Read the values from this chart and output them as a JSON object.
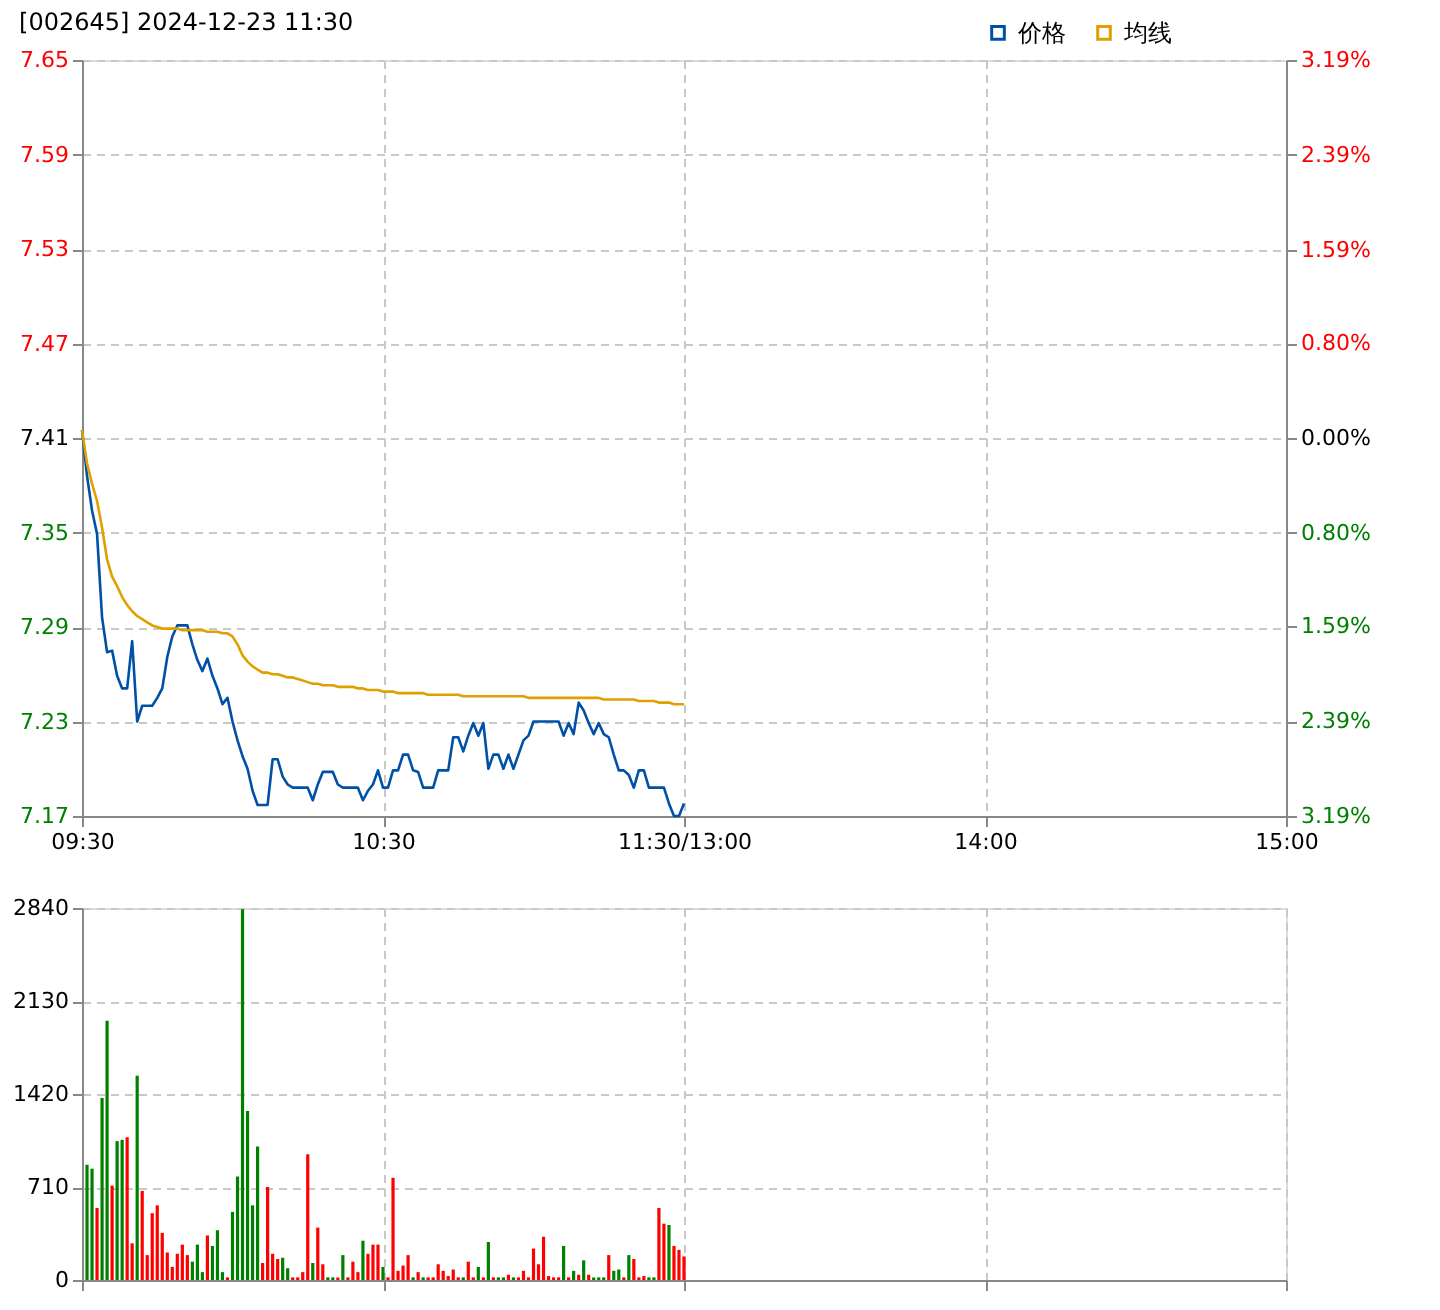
{
  "chart_data": [
    {
      "type": "line",
      "title": "[002645] 2024-12-23 11:30",
      "legend": "top right",
      "grid": true,
      "categories": [
        "09:30",
        null,
        null,
        null,
        null,
        null,
        null,
        null,
        null,
        null,
        null,
        null,
        null,
        null,
        null,
        null,
        null,
        null,
        null,
        null,
        null,
        null,
        null,
        null,
        null,
        null,
        null,
        null,
        null,
        null,
        null,
        null,
        null,
        null,
        null,
        null,
        null,
        null,
        null,
        null,
        null,
        null,
        null,
        null,
        null,
        null,
        null,
        null,
        null,
        null,
        null,
        null,
        null,
        null,
        null,
        null,
        null,
        null,
        null,
        null,
        "10:30",
        null,
        null,
        null,
        null,
        null,
        null,
        null,
        null,
        null,
        null,
        null,
        null,
        null,
        null,
        null,
        null,
        null,
        null,
        null,
        null,
        null,
        null,
        null,
        null,
        null,
        null,
        null,
        null,
        null,
        null,
        null,
        null,
        null,
        null,
        null,
        null,
        null,
        null,
        null,
        null,
        null,
        null,
        null,
        null,
        null,
        null,
        null,
        null,
        null,
        null,
        null,
        null,
        null,
        null,
        null,
        null,
        null,
        null,
        null,
        "11:30/13:00",
        null,
        null,
        null,
        null,
        null,
        null,
        null,
        null,
        null,
        null,
        null,
        null,
        null,
        null,
        null,
        null,
        null,
        null,
        null,
        null,
        null,
        null,
        null,
        null,
        null,
        null,
        null,
        null,
        null,
        null,
        null,
        null,
        null,
        null,
        null,
        null,
        null,
        null,
        null,
        null,
        null,
        null,
        null,
        null,
        null,
        null,
        null,
        null,
        null,
        null,
        null,
        null,
        null,
        null,
        null,
        null,
        null,
        null,
        null,
        "14:00",
        null,
        null,
        null,
        null,
        null,
        null,
        null,
        null,
        null,
        null,
        null,
        null,
        null,
        null,
        null,
        null,
        null,
        null,
        null,
        null,
        null,
        null,
        null,
        null,
        null,
        null,
        null,
        null,
        null,
        null,
        null,
        null,
        null,
        null,
        null,
        null,
        null,
        null,
        null,
        null,
        null,
        null,
        null,
        null,
        null,
        null,
        null,
        null,
        null,
        null,
        null,
        null,
        null,
        null,
        null,
        null,
        null,
        null,
        null,
        "15:00"
      ],
      "ylim": [
        7.17,
        7.65
      ],
      "yticks": [
        7.17,
        7.23,
        7.29,
        7.35,
        7.41,
        7.47,
        7.53,
        7.59,
        7.65
      ],
      "y2lim": [
        -3.19,
        3.19
      ],
      "y2ticks": [
        {
          "value": -3.19,
          "label": "3.19%"
        },
        {
          "value": -2.39,
          "label": "2.39%"
        },
        {
          "value": -1.59,
          "label": "1.59%"
        },
        {
          "value": -0.8,
          "label": "0.80%"
        },
        {
          "value": 0,
          "label": "0.00%"
        },
        {
          "value": 0.8,
          "label": "0.80%"
        },
        {
          "value": 1.59,
          "label": "1.59%"
        },
        {
          "value": 2.39,
          "label": "2.39%"
        },
        {
          "value": 3.19,
          "label": "3.19%"
        }
      ],
      "series": [
        {
          "name": "价格",
          "color": "#0050a8",
          "values": [
            7.415,
            7.386,
            7.364,
            7.349,
            7.296,
            7.274,
            7.275,
            7.259,
            7.251,
            7.251,
            7.281,
            7.23,
            7.24,
            7.24,
            7.24,
            7.245,
            7.251,
            7.271,
            7.284,
            7.291,
            7.291,
            7.291,
            7.279,
            7.269,
            7.262,
            7.27,
            7.259,
            7.251,
            7.241,
            7.245,
            7.23,
            7.218,
            7.208,
            7.2,
            7.186,
            7.177,
            7.177,
            7.177,
            7.206,
            7.206,
            7.195,
            7.19,
            7.188,
            7.188,
            7.188,
            7.188,
            7.18,
            7.19,
            7.198,
            7.198,
            7.198,
            7.19,
            7.188,
            7.188,
            7.188,
            7.188,
            7.18,
            7.186,
            7.19,
            7.199,
            7.188,
            7.188,
            7.199,
            7.199,
            7.209,
            7.209,
            7.199,
            7.198,
            7.188,
            7.188,
            7.188,
            7.199,
            7.199,
            7.199,
            7.22,
            7.22,
            7.211,
            7.221,
            7.229,
            7.221,
            7.229,
            7.2,
            7.209,
            7.209,
            7.2,
            7.209,
            7.2,
            7.209,
            7.218,
            7.221,
            7.23,
            7.23,
            7.23,
            7.23,
            7.23,
            7.23,
            7.221,
            7.229,
            7.222,
            7.242,
            7.237,
            7.229,
            7.222,
            7.229,
            7.222,
            7.22,
            7.209,
            7.199,
            7.199,
            7.196,
            7.188,
            7.199,
            7.199,
            7.188,
            7.188,
            7.188,
            7.188,
            7.178,
            7.17,
            7.17,
            7.178,
            null,
            null,
            null,
            null,
            null,
            null,
            null,
            null,
            null,
            null,
            null,
            null,
            null,
            null,
            null,
            null,
            null,
            null,
            null,
            null,
            null,
            null,
            null,
            null,
            null,
            null,
            null,
            null,
            null,
            null,
            null,
            null,
            null,
            null,
            null,
            null,
            null,
            null,
            null,
            null,
            null,
            null,
            null,
            null,
            null,
            null,
            null,
            null,
            null,
            null,
            null,
            null,
            null,
            null,
            null,
            null,
            null,
            null,
            null,
            null,
            null,
            null,
            null,
            null,
            null,
            null,
            null,
            null,
            null,
            null,
            null,
            null,
            null,
            null,
            null,
            null,
            null,
            null,
            null,
            null,
            null,
            null,
            null,
            null,
            null,
            null,
            null,
            null,
            null,
            null,
            null,
            null,
            null,
            null,
            null,
            null,
            null,
            null,
            null,
            null,
            null,
            null,
            null,
            null,
            null,
            null,
            null,
            null,
            null,
            null,
            null,
            null,
            null,
            null,
            null,
            null,
            null,
            null,
            null,
            null
          ]
        },
        {
          "name": "均线",
          "color": "#e0a000",
          "values": [
            7.415,
            7.394,
            7.381,
            7.37,
            7.353,
            7.333,
            7.322,
            7.316,
            7.309,
            7.304,
            7.3,
            7.297,
            7.295,
            7.293,
            7.291,
            7.29,
            7.289,
            7.289,
            7.289,
            7.289,
            7.288,
            7.288,
            7.288,
            7.288,
            7.288,
            7.287,
            7.287,
            7.287,
            7.286,
            7.286,
            7.284,
            7.279,
            7.272,
            7.268,
            7.265,
            7.263,
            7.261,
            7.261,
            7.26,
            7.26,
            7.259,
            7.258,
            7.258,
            7.257,
            7.256,
            7.255,
            7.254,
            7.254,
            7.253,
            7.253,
            7.253,
            7.252,
            7.252,
            7.252,
            7.252,
            7.251,
            7.251,
            7.25,
            7.25,
            7.25,
            7.249,
            7.249,
            7.249,
            7.248,
            7.248,
            7.248,
            7.248,
            7.248,
            7.248,
            7.247,
            7.247,
            7.247,
            7.247,
            7.247,
            7.247,
            7.247,
            7.246,
            7.246,
            7.246,
            7.246,
            7.246,
            7.246,
            7.246,
            7.246,
            7.246,
            7.246,
            7.246,
            7.246,
            7.246,
            7.245,
            7.245,
            7.245,
            7.245,
            7.245,
            7.245,
            7.245,
            7.245,
            7.245,
            7.245,
            7.245,
            7.245,
            7.245,
            7.245,
            7.245,
            7.244,
            7.244,
            7.244,
            7.244,
            7.244,
            7.244,
            7.244,
            7.243,
            7.243,
            7.243,
            7.243,
            7.242,
            7.242,
            7.242,
            7.241,
            7.241,
            7.241,
            null,
            null,
            null,
            null,
            null,
            null,
            null,
            null,
            null,
            null,
            null,
            null,
            null,
            null,
            null,
            null,
            null,
            null,
            null,
            null,
            null,
            null,
            null,
            null,
            null,
            null,
            null,
            null,
            null,
            null,
            null,
            null,
            null,
            null,
            null,
            null,
            null,
            null,
            null,
            null,
            null,
            null,
            null,
            null,
            null,
            null,
            null,
            null,
            null,
            null,
            null,
            null,
            null,
            null,
            null,
            null,
            null,
            null,
            null,
            null,
            null,
            null,
            null,
            null,
            null,
            null,
            null,
            null,
            null,
            null,
            null,
            null,
            null,
            null,
            null,
            null,
            null,
            null,
            null,
            null,
            null,
            null,
            null,
            null,
            null,
            null,
            null,
            null,
            null,
            null,
            null,
            null,
            null,
            null,
            null,
            null,
            null,
            null,
            null,
            null,
            null,
            null,
            null,
            null,
            null,
            null,
            null,
            null,
            null,
            null,
            null,
            null,
            null,
            null,
            null,
            null,
            null,
            null,
            null,
            null
          ]
        }
      ]
    },
    {
      "type": "bar",
      "grid": true,
      "tick_labels": "y",
      "categories": [
        null,
        null,
        null,
        null,
        null,
        null,
        null,
        null,
        null,
        null,
        null,
        null,
        null,
        null,
        null,
        null,
        null,
        null,
        null,
        null,
        null,
        null,
        null,
        null,
        null,
        null,
        null,
        null,
        null,
        null,
        null,
        null,
        null,
        null,
        null,
        null,
        null,
        null,
        null,
        null,
        null,
        null,
        null,
        null,
        null,
        null,
        null,
        null,
        null,
        null,
        null,
        null,
        null,
        null,
        null,
        null,
        null,
        null,
        null,
        null,
        null,
        null,
        null,
        null,
        null,
        null,
        null,
        null,
        null,
        null,
        null,
        null,
        null,
        null,
        null,
        null,
        null,
        null,
        null,
        null,
        null,
        null,
        null,
        null,
        null,
        null,
        null,
        null,
        null,
        null,
        null,
        null,
        null,
        null,
        null,
        null,
        null,
        null,
        null,
        null,
        null,
        null,
        null,
        null,
        null,
        null,
        null,
        null,
        null,
        null,
        null,
        null,
        null,
        null,
        null,
        null,
        null,
        null,
        null,
        null,
        null,
        null,
        null,
        null,
        null,
        null,
        null,
        null,
        null,
        null,
        null,
        null,
        null,
        null,
        null,
        null,
        null,
        null,
        null,
        null,
        null,
        null,
        null,
        null,
        null,
        null,
        null,
        null,
        null,
        null,
        null,
        null,
        null,
        null,
        null,
        null,
        null,
        null,
        null,
        null,
        null,
        null,
        null,
        null,
        null,
        null,
        null,
        null,
        null,
        null,
        null,
        null,
        null,
        null,
        null,
        null,
        null,
        null,
        null,
        null,
        null,
        null,
        null,
        null,
        null,
        null,
        null,
        null,
        null,
        null,
        null,
        null,
        null,
        null,
        null,
        null,
        null,
        null,
        null,
        null,
        null,
        null,
        null,
        null,
        null,
        null,
        null,
        null,
        null,
        null,
        null,
        null,
        null,
        null,
        null,
        null,
        null,
        null,
        null,
        null,
        null,
        null,
        null,
        null,
        null,
        null,
        null,
        null,
        null,
        null,
        null,
        null,
        null,
        null,
        null,
        null,
        null,
        null,
        null,
        null,
        null
      ],
      "ylim": [
        0,
        2840
      ],
      "yticks": [
        0,
        710,
        1420,
        2130,
        2840
      ],
      "values": [
        null,
        880,
        850,
        550,
        1390,
        1980,
        720,
        1060,
        1070,
        1090,
        280,
        1560,
        680,
        190,
        510,
        570,
        360,
        210,
        100,
        200,
        270,
        190,
        140,
        270,
        60,
        340,
        260,
        380,
        60,
        20,
        520,
        790,
        2830,
        1290,
        570,
        1020,
        130,
        710,
        200,
        160,
        170,
        90,
        20,
        20,
        60,
        960,
        130,
        400,
        120,
        20,
        20,
        20,
        190,
        20,
        140,
        60,
        300,
        200,
        270,
        270,
        100,
        20,
        780,
        70,
        110,
        190,
        20,
        60,
        20,
        20,
        20,
        120,
        70,
        30,
        80,
        20,
        20,
        140,
        20,
        100,
        20,
        290,
        20,
        20,
        20,
        40,
        20,
        20,
        70,
        20,
        240,
        120,
        330,
        30,
        20,
        20,
        260,
        20,
        70,
        40,
        150,
        40,
        20,
        20,
        20,
        190,
        70,
        80,
        20,
        190,
        160,
        20,
        30,
        20,
        20,
        550,
        430,
        420,
        260,
        230,
        180,
        null,
        null,
        null,
        null,
        null,
        null,
        null,
        null,
        null,
        null,
        null,
        null,
        null,
        null,
        null,
        null,
        null,
        null,
        null,
        null,
        null,
        null,
        null,
        null,
        null,
        null,
        null,
        null,
        null,
        null,
        null,
        null,
        null,
        null,
        null,
        null,
        null,
        null,
        null,
        null,
        null,
        null,
        null,
        null,
        null,
        null,
        null,
        null,
        null,
        null,
        null,
        null,
        null,
        null,
        null,
        null,
        null,
        null,
        null,
        null,
        null,
        null,
        null,
        null,
        null,
        null,
        null,
        null,
        null,
        null,
        null,
        null,
        null,
        null,
        null,
        null,
        null,
        null,
        null,
        null,
        null,
        null,
        null,
        null,
        null,
        null,
        null,
        null,
        null,
        null,
        null,
        null,
        null,
        null,
        null,
        null,
        null,
        null,
        null,
        null,
        null,
        null,
        null,
        null,
        null,
        null,
        null,
        null,
        null,
        null,
        null,
        null,
        null,
        null,
        null,
        null,
        null,
        null,
        null,
        null
      ],
      "colors": [
        null,
        "#008000",
        "#008000",
        "#ff0000",
        "#008000",
        "#008000",
        "#ff0000",
        "#008000",
        "#008000",
        "#ff0000",
        "#ff0000",
        "#008000",
        "#ff0000",
        "#ff0000",
        "#ff0000",
        "#ff0000",
        "#ff0000",
        "#ff0000",
        "#ff0000",
        "#ff0000",
        "#ff0000",
        "#ff0000",
        "#008000",
        "#008000",
        "#008000",
        "#ff0000",
        "#008000",
        "#008000",
        "#008000",
        "#ff0000",
        "#008000",
        "#008000",
        "#008000",
        "#008000",
        "#008000",
        "#008000",
        "#ff0000",
        "#ff0000",
        "#ff0000",
        "#ff0000",
        "#008000",
        "#008000",
        "#ff0000",
        "#ff0000",
        "#ff0000",
        "#ff0000",
        "#008000",
        "#ff0000",
        "#ff0000",
        "#008000",
        "#008000",
        "#ff0000",
        "#008000",
        "#ff0000",
        "#ff0000",
        "#ff0000",
        "#008000",
        "#ff0000",
        "#ff0000",
        "#ff0000",
        "#008000",
        "#ff0000",
        "#ff0000",
        "#ff0000",
        "#ff0000",
        "#ff0000",
        "#008000",
        "#ff0000",
        "#008000",
        "#ff0000",
        "#ff0000",
        "#ff0000",
        "#ff0000",
        "#ff0000",
        "#ff0000",
        "#ff0000",
        "#008000",
        "#ff0000",
        "#ff0000",
        "#008000",
        "#ff0000",
        "#008000",
        "#ff0000",
        "#008000",
        "#008000",
        "#ff0000",
        "#008000",
        "#ff0000",
        "#ff0000",
        "#ff0000",
        "#ff0000",
        "#ff0000",
        "#ff0000",
        "#ff0000",
        "#ff0000",
        "#ff0000",
        "#008000",
        "#ff0000",
        "#008000",
        "#ff0000",
        "#008000",
        "#ff0000",
        "#008000",
        "#008000",
        "#008000",
        "#ff0000",
        "#008000",
        "#008000",
        "#ff0000",
        "#008000",
        "#ff0000",
        "#ff0000",
        "#ff0000",
        "#008000",
        "#008000",
        "#ff0000",
        "#ff0000",
        "#008000",
        "#ff0000",
        "#ff0000",
        "#ff0000",
        null,
        null,
        null,
        null,
        null,
        null,
        null,
        null,
        null,
        null,
        null,
        null,
        null,
        null,
        null,
        null,
        null,
        null,
        null,
        null,
        null,
        null,
        null,
        null,
        null,
        null,
        null,
        null,
        null,
        null,
        null,
        null,
        null,
        null,
        null,
        null,
        null,
        null,
        null,
        null,
        null,
        null,
        null,
        null,
        null,
        null,
        null,
        null,
        null,
        null,
        null,
        null,
        null,
        null,
        null,
        null,
        null,
        null,
        null,
        null,
        null,
        null,
        null,
        null,
        null,
        null,
        null,
        null,
        null,
        null,
        null,
        null,
        null,
        null,
        null,
        null,
        null,
        null,
        null,
        null,
        null,
        null,
        null,
        null,
        null,
        null,
        null,
        null,
        null,
        null,
        null,
        null,
        null,
        null,
        null,
        null,
        null,
        null,
        null,
        null,
        null,
        null,
        null,
        null,
        null,
        null,
        null,
        null,
        null,
        null,
        null,
        null,
        null,
        null,
        null,
        null,
        null,
        null,
        null,
        null
      ]
    }
  ]
}
